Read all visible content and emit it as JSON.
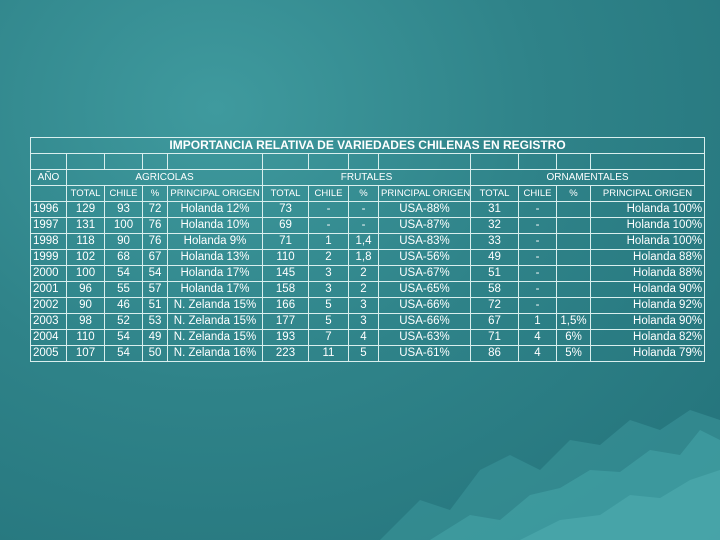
{
  "title": "IMPORTANCIA RELATIVA DE VARIEDADES CHILENAS EN REGISTRO",
  "headers": {
    "year": "AÑO",
    "groups": [
      "AGRICOLAS",
      "FRUTALES",
      "ORNAMENTALES"
    ],
    "subcols": [
      "TOTAL",
      "CHILE",
      "%",
      "PRINCIPAL ORIGEN"
    ]
  },
  "rows": [
    {
      "year": "1996",
      "agr_total": "129",
      "agr_chile": "93",
      "agr_pct": "72",
      "agr_origin": "Holanda 12%",
      "fru_total": "73",
      "fru_chile": "-",
      "fru_pct": "-",
      "fru_origin": "USA-88%",
      "orn_total": "31",
      "orn_chile": "-",
      "orn_pct": "",
      "orn_origin": "Holanda 100%"
    },
    {
      "year": "1997",
      "agr_total": "131",
      "agr_chile": "100",
      "agr_pct": "76",
      "agr_origin": "Holanda 10%",
      "fru_total": "69",
      "fru_chile": "-",
      "fru_pct": "-",
      "fru_origin": "USA-87%",
      "orn_total": "32",
      "orn_chile": "-",
      "orn_pct": "",
      "orn_origin": "Holanda 100%"
    },
    {
      "year": "1998",
      "agr_total": "118",
      "agr_chile": "90",
      "agr_pct": "76",
      "agr_origin": "Holanda 9%",
      "fru_total": "71",
      "fru_chile": "1",
      "fru_pct": "1,4",
      "fru_origin": "USA-83%",
      "orn_total": "33",
      "orn_chile": "-",
      "orn_pct": "",
      "orn_origin": "Holanda 100%"
    },
    {
      "year": "1999",
      "agr_total": "102",
      "agr_chile": "68",
      "agr_pct": "67",
      "agr_origin": "Holanda 13%",
      "fru_total": "110",
      "fru_chile": "2",
      "fru_pct": "1,8",
      "fru_origin": "USA-56%",
      "orn_total": "49",
      "orn_chile": "-",
      "orn_pct": "",
      "orn_origin": "Holanda 88%"
    },
    {
      "year": "2000",
      "agr_total": "100",
      "agr_chile": "54",
      "agr_pct": "54",
      "agr_origin": "Holanda 17%",
      "fru_total": "145",
      "fru_chile": "3",
      "fru_pct": "2",
      "fru_origin": "USA-67%",
      "orn_total": "51",
      "orn_chile": "-",
      "orn_pct": "",
      "orn_origin": "Holanda 88%"
    },
    {
      "year": "2001",
      "agr_total": "96",
      "agr_chile": "55",
      "agr_pct": "57",
      "agr_origin": "Holanda 17%",
      "fru_total": "158",
      "fru_chile": "3",
      "fru_pct": "2",
      "fru_origin": "USA-65%",
      "orn_total": "58",
      "orn_chile": "-",
      "orn_pct": "",
      "orn_origin": "Holanda 90%"
    },
    {
      "year": "2002",
      "agr_total": "90",
      "agr_chile": "46",
      "agr_pct": "51",
      "agr_origin": "N. Zelanda 15%",
      "fru_total": "166",
      "fru_chile": "5",
      "fru_pct": "3",
      "fru_origin": "USA-66%",
      "orn_total": "72",
      "orn_chile": "-",
      "orn_pct": "",
      "orn_origin": "Holanda 92%"
    },
    {
      "year": "2003",
      "agr_total": "98",
      "agr_chile": "52",
      "agr_pct": "53",
      "agr_origin": "N. Zelanda 15%",
      "fru_total": "177",
      "fru_chile": "5",
      "fru_pct": "3",
      "fru_origin": "USA-66%",
      "orn_total": "67",
      "orn_chile": "1",
      "orn_pct": "1,5%",
      "orn_origin": "Holanda 90%"
    },
    {
      "year": "2004",
      "agr_total": "110",
      "agr_chile": "54",
      "agr_pct": "49",
      "agr_origin": "N. Zelanda 15%",
      "fru_total": "193",
      "fru_chile": "7",
      "fru_pct": "4",
      "fru_origin": "USA-63%",
      "orn_total": "71",
      "orn_chile": "4",
      "orn_pct": "6%",
      "orn_origin": "Holanda 82%"
    },
    {
      "year": "2005",
      "agr_total": "107",
      "agr_chile": "54",
      "agr_pct": "50",
      "agr_origin": "N. Zelanda 16%",
      "fru_total": "223",
      "fru_chile": "11",
      "fru_pct": "5",
      "fru_origin": "USA-61%",
      "orn_total": "86",
      "orn_chile": "4",
      "orn_pct": "5%",
      "orn_origin": "Holanda 79%"
    }
  ],
  "colors": {
    "background": "#2f8389",
    "mountain": "#3f9ea3",
    "text": "#ffffff",
    "border": "#d9efee"
  }
}
